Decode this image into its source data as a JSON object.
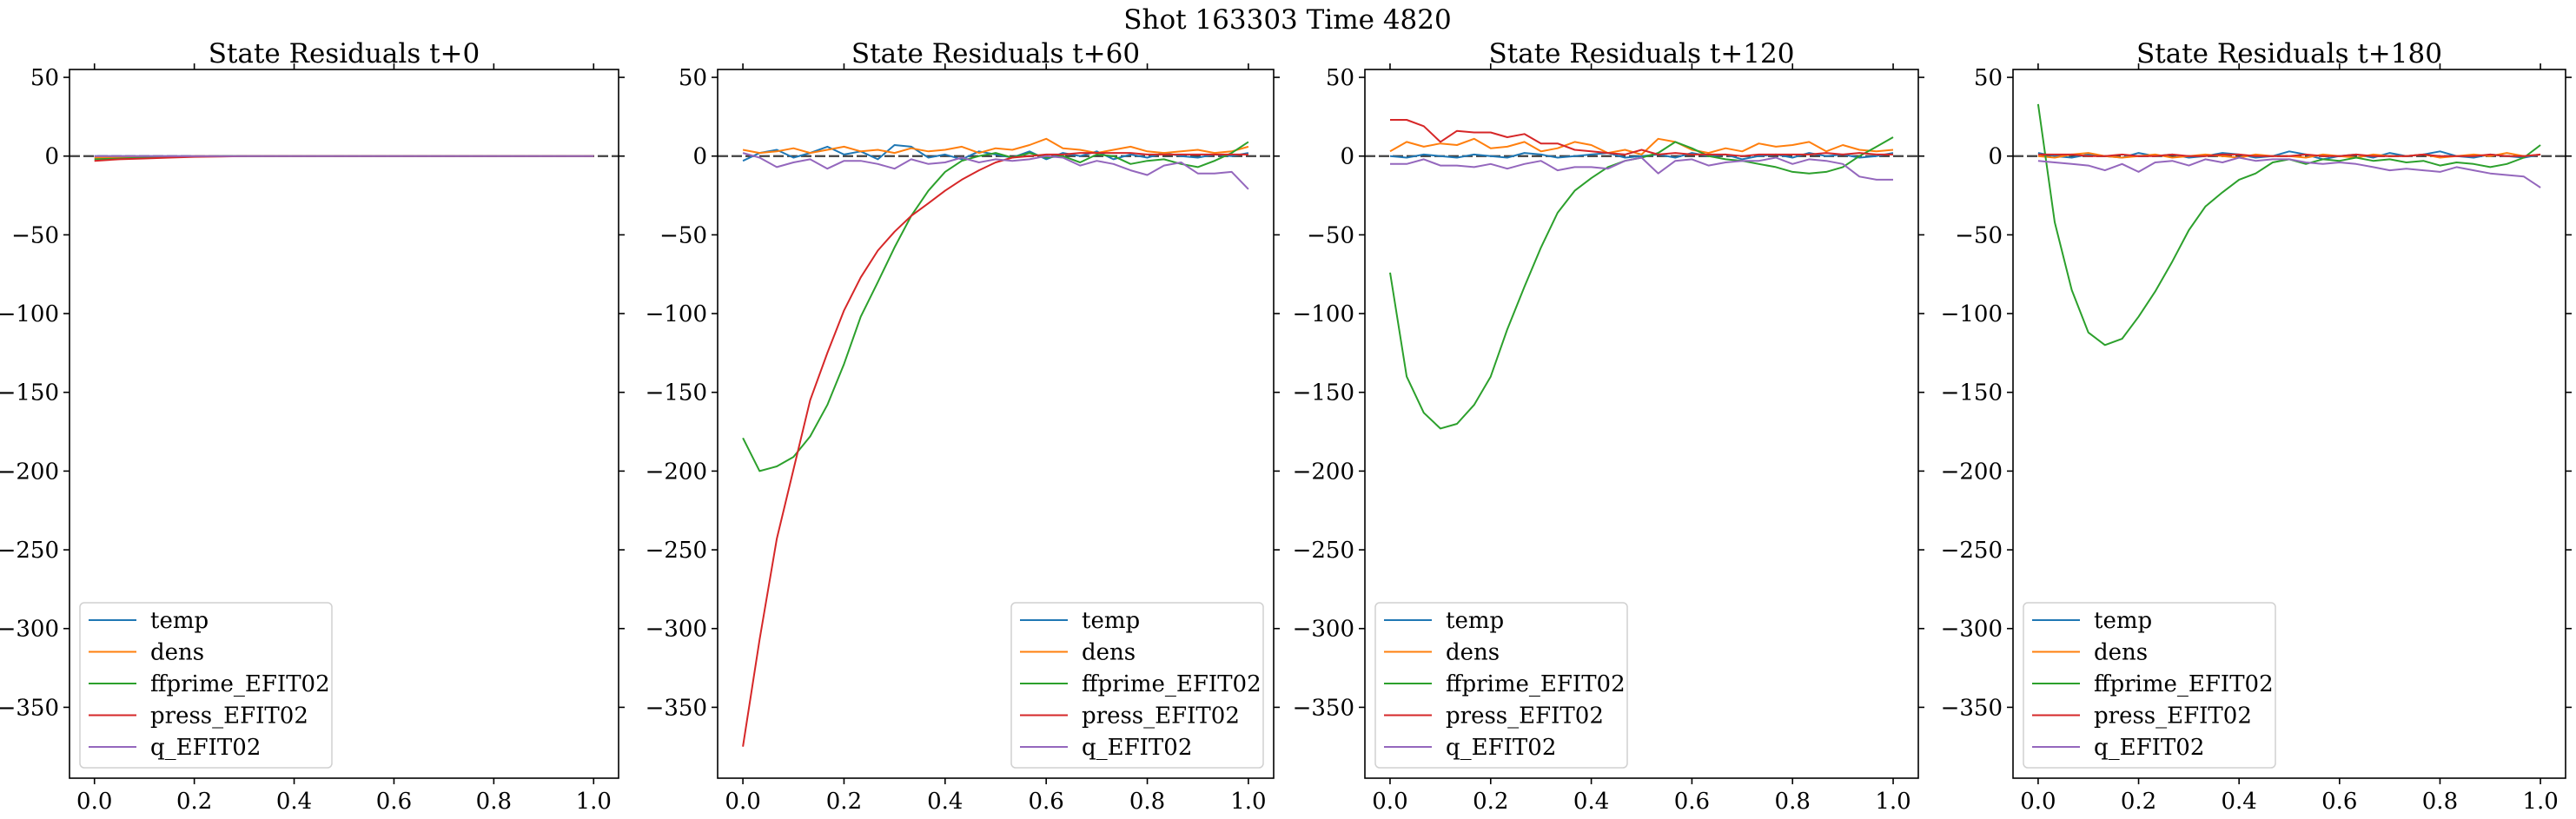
{
  "figure": {
    "suptitle": "Shot 163303   Time 4820"
  },
  "colors": {
    "temp": "#1f77b4",
    "dens": "#ff7f0e",
    "ffprime_EFIT02": "#2ca02c",
    "press_EFIT02": "#d62728",
    "q_EFIT02": "#9467bd",
    "zero_line": "#000000"
  },
  "chart_data": [
    {
      "type": "line",
      "title": "State Residuals t+0",
      "xlim": [
        -0.05,
        1.05
      ],
      "ylim": [
        -395,
        55
      ],
      "xticks": [
        "0.0",
        "0.2",
        "0.4",
        "0.6",
        "0.8",
        "1.0"
      ],
      "yticks": [
        "50",
        "0",
        "−50",
        "−100",
        "−150",
        "−200",
        "−250",
        "−300",
        "−350"
      ],
      "legend_position": "lower-left",
      "grid": false,
      "x": [
        0.0,
        0.05,
        0.1,
        0.15,
        0.2,
        0.25,
        0.3,
        0.35,
        0.4,
        0.45,
        0.5,
        0.55,
        0.6,
        0.65,
        0.7,
        0.75,
        0.8,
        0.85,
        0.9,
        0.95,
        1.0
      ],
      "series": [
        {
          "name": "temp",
          "key": "temp",
          "values": [
            0,
            0,
            0,
            0,
            0,
            0,
            0,
            0,
            0,
            0,
            0,
            0,
            0,
            0,
            0,
            0,
            0,
            0,
            0,
            0,
            0
          ]
        },
        {
          "name": "dens",
          "key": "dens",
          "values": [
            -1,
            -1,
            -0.5,
            -0.5,
            0,
            0,
            0,
            0,
            0,
            0,
            0,
            0,
            0,
            0,
            0,
            0,
            0,
            0,
            0,
            0,
            0
          ]
        },
        {
          "name": "ffprime_EFIT02",
          "key": "ffprime_EFIT02",
          "values": [
            -2,
            -1.5,
            -1,
            -0.5,
            -0.3,
            0,
            0,
            0,
            0,
            0,
            0,
            0,
            0,
            0,
            0,
            0,
            0,
            0,
            0,
            0,
            0
          ]
        },
        {
          "name": "press_EFIT02",
          "key": "press_EFIT02",
          "values": [
            -3,
            -2,
            -1.5,
            -1,
            -0.5,
            -0.3,
            0,
            0,
            0,
            0,
            0,
            0,
            0,
            0,
            0,
            0,
            0,
            0,
            0,
            0,
            0
          ]
        },
        {
          "name": "q_EFIT02",
          "key": "q_EFIT02",
          "values": [
            0,
            0,
            0,
            0,
            0,
            0,
            0,
            0,
            0,
            0,
            0,
            0,
            0,
            0,
            0,
            0,
            0,
            0,
            0,
            0,
            0
          ]
        }
      ]
    },
    {
      "type": "line",
      "title": "State Residuals t+60",
      "xlim": [
        -0.05,
        1.05
      ],
      "ylim": [
        -395,
        55
      ],
      "xticks": [
        "0.0",
        "0.2",
        "0.4",
        "0.6",
        "0.8",
        "1.0"
      ],
      "yticks": [
        "50",
        "0",
        "−50",
        "−100",
        "−150",
        "−200",
        "−250",
        "−300",
        "−350"
      ],
      "legend_position": "lower-right",
      "grid": false,
      "x": [
        0.0,
        0.033,
        0.067,
        0.1,
        0.133,
        0.167,
        0.2,
        0.233,
        0.267,
        0.3,
        0.333,
        0.367,
        0.4,
        0.433,
        0.467,
        0.5,
        0.533,
        0.567,
        0.6,
        0.633,
        0.667,
        0.7,
        0.733,
        0.767,
        0.8,
        0.833,
        0.867,
        0.9,
        0.933,
        0.967,
        1.0
      ],
      "series": [
        {
          "name": "temp",
          "key": "temp",
          "values": [
            -3,
            2,
            4,
            -1,
            2,
            6,
            1,
            3,
            -2,
            7,
            6,
            -1,
            1,
            -2,
            3,
            1,
            -1,
            3,
            -2,
            2,
            0,
            3,
            -2,
            1,
            -1,
            2,
            0,
            -1,
            1,
            0,
            2
          ]
        },
        {
          "name": "dens",
          "key": "dens",
          "values": [
            4,
            2,
            3,
            5,
            2,
            4,
            6,
            3,
            4,
            2,
            5,
            3,
            4,
            6,
            2,
            5,
            4,
            7,
            11,
            5,
            4,
            2,
            4,
            6,
            3,
            2,
            3,
            4,
            2,
            3,
            6
          ]
        },
        {
          "name": "ffprime_EFIT02",
          "key": "ffprime_EFIT02",
          "values": [
            -179,
            -200,
            -197,
            -191,
            -178,
            -158,
            -132,
            -102,
            -80,
            -58,
            -38,
            -22,
            -10,
            -3,
            0,
            2,
            -1,
            2,
            -1,
            0,
            -4,
            1,
            0,
            -5,
            -3,
            -2,
            -5,
            -7,
            -3,
            2,
            9
          ]
        },
        {
          "name": "press_EFIT02",
          "key": "press_EFIT02",
          "values": [
            -375,
            -307,
            -243,
            -199,
            -155,
            -125,
            -98,
            -77,
            -60,
            -48,
            -38,
            -30,
            -22,
            -15,
            -9,
            -4,
            -1,
            0,
            1,
            1,
            2,
            2,
            2,
            2,
            1,
            1,
            1,
            1,
            1,
            1,
            1
          ]
        },
        {
          "name": "q_EFIT02",
          "key": "q_EFIT02",
          "values": [
            2,
            -1,
            -7,
            -4,
            -2,
            -8,
            -3,
            -3,
            -5,
            -8,
            -2,
            -5,
            -4,
            -1,
            -4,
            -2,
            -3,
            -2,
            0,
            -1,
            -6,
            -3,
            -5,
            -9,
            -12,
            -6,
            -4,
            -11,
            -11,
            -10,
            -21
          ]
        }
      ]
    },
    {
      "type": "line",
      "title": "State Residuals t+120",
      "xlim": [
        -0.05,
        1.05
      ],
      "ylim": [
        -395,
        55
      ],
      "xticks": [
        "0.0",
        "0.2",
        "0.4",
        "0.6",
        "0.8",
        "1.0"
      ],
      "yticks": [
        "50",
        "0",
        "−50",
        "−100",
        "−150",
        "−200",
        "−250",
        "−300",
        "−350"
      ],
      "legend_position": "lower-left",
      "grid": false,
      "x": [
        0.0,
        0.033,
        0.067,
        0.1,
        0.133,
        0.167,
        0.2,
        0.233,
        0.267,
        0.3,
        0.333,
        0.367,
        0.4,
        0.433,
        0.467,
        0.5,
        0.533,
        0.567,
        0.6,
        0.633,
        0.667,
        0.7,
        0.733,
        0.767,
        0.8,
        0.833,
        0.867,
        0.9,
        0.933,
        0.967,
        1.0
      ],
      "series": [
        {
          "name": "temp",
          "key": "temp",
          "values": [
            0,
            -1,
            1,
            0,
            -1,
            1,
            0,
            -1,
            2,
            1,
            -1,
            0,
            1,
            2,
            -1,
            0,
            1,
            -1,
            2,
            0,
            1,
            -2,
            0,
            1,
            -1,
            2,
            0,
            1,
            -1,
            0,
            2
          ]
        },
        {
          "name": "dens",
          "key": "dens",
          "values": [
            3,
            9,
            6,
            8,
            7,
            11,
            5,
            6,
            9,
            3,
            5,
            9,
            7,
            2,
            4,
            1,
            11,
            9,
            4,
            2,
            5,
            3,
            8,
            6,
            7,
            9,
            3,
            7,
            4,
            3,
            4
          ]
        },
        {
          "name": "ffprime_EFIT02",
          "key": "ffprime_EFIT02",
          "values": [
            -74,
            -140,
            -163,
            -173,
            -170,
            -158,
            -140,
            -110,
            -83,
            -58,
            -36,
            -22,
            -14,
            -7,
            -3,
            -1,
            2,
            9,
            5,
            0,
            -2,
            -3,
            -5,
            -7,
            -10,
            -11,
            -10,
            -7,
            0,
            6,
            12
          ]
        },
        {
          "name": "press_EFIT02",
          "key": "press_EFIT02",
          "values": [
            23,
            23,
            19,
            9,
            16,
            15,
            15,
            12,
            14,
            8,
            8,
            4,
            3,
            2,
            1,
            4,
            1,
            2,
            1,
            1,
            1,
            0,
            1,
            1,
            1,
            1,
            2,
            1,
            2,
            1,
            1
          ]
        },
        {
          "name": "q_EFIT02",
          "key": "q_EFIT02",
          "values": [
            -5,
            -5,
            -2,
            -6,
            -6,
            -7,
            -5,
            -8,
            -5,
            -3,
            -9,
            -7,
            -7,
            -8,
            -3,
            -1,
            -11,
            -3,
            -2,
            -6,
            -4,
            -3,
            -3,
            -1,
            -5,
            -2,
            -3,
            -5,
            -13,
            -15,
            -15
          ]
        }
      ]
    },
    {
      "type": "line",
      "title": "State Residuals t+180",
      "xlim": [
        -0.05,
        1.05
      ],
      "ylim": [
        -395,
        55
      ],
      "xticks": [
        "0.0",
        "0.2",
        "0.4",
        "0.6",
        "0.8",
        "1.0"
      ],
      "yticks": [
        "50",
        "0",
        "−50",
        "−100",
        "−150",
        "−200",
        "−250",
        "−300",
        "−350"
      ],
      "legend_position": "lower-left",
      "grid": false,
      "x": [
        0.0,
        0.033,
        0.067,
        0.1,
        0.133,
        0.167,
        0.2,
        0.233,
        0.267,
        0.3,
        0.333,
        0.367,
        0.4,
        0.433,
        0.467,
        0.5,
        0.533,
        0.567,
        0.6,
        0.633,
        0.667,
        0.7,
        0.733,
        0.767,
        0.8,
        0.833,
        0.867,
        0.9,
        0.933,
        0.967,
        1.0
      ],
      "series": [
        {
          "name": "temp",
          "key": "temp",
          "values": [
            2,
            0,
            -1,
            1,
            0,
            -1,
            2,
            0,
            1,
            -1,
            0,
            2,
            1,
            -1,
            0,
            3,
            1,
            -2,
            0,
            1,
            -1,
            2,
            0,
            1,
            3,
            0,
            -1,
            1,
            0,
            -1,
            1
          ]
        },
        {
          "name": "dens",
          "key": "dens",
          "values": [
            0,
            -1,
            1,
            2,
            0,
            -1,
            0,
            1,
            -1,
            0,
            1,
            0,
            -1,
            1,
            0,
            0,
            -1,
            1,
            0,
            -1,
            1,
            0,
            0,
            1,
            -1,
            0,
            1,
            0,
            2,
            0,
            1
          ]
        },
        {
          "name": "ffprime_EFIT02",
          "key": "ffprime_EFIT02",
          "values": [
            33,
            -42,
            -85,
            -112,
            -120,
            -116,
            -102,
            -86,
            -67,
            -47,
            -32,
            -23,
            -15,
            -11,
            -4,
            -2,
            -5,
            -2,
            -3,
            -1,
            -3,
            -2,
            -4,
            -3,
            -6,
            -4,
            -5,
            -7,
            -5,
            -1,
            7
          ]
        },
        {
          "name": "press_EFIT02",
          "key": "press_EFIT02",
          "values": [
            1,
            1,
            1,
            0,
            0,
            1,
            0,
            0,
            1,
            0,
            0,
            1,
            1,
            0,
            0,
            0,
            1,
            0,
            0,
            1,
            0,
            0,
            0,
            1,
            0,
            0,
            0,
            1,
            0,
            0,
            1
          ]
        },
        {
          "name": "q_EFIT02",
          "key": "q_EFIT02",
          "values": [
            -3,
            -4,
            -5,
            -6,
            -9,
            -5,
            -10,
            -4,
            -3,
            -6,
            -2,
            -4,
            -1,
            -3,
            -2,
            -2,
            -4,
            -5,
            -4,
            -5,
            -7,
            -9,
            -8,
            -9,
            -10,
            -7,
            -9,
            -11,
            -12,
            -13,
            -20
          ]
        }
      ]
    }
  ]
}
